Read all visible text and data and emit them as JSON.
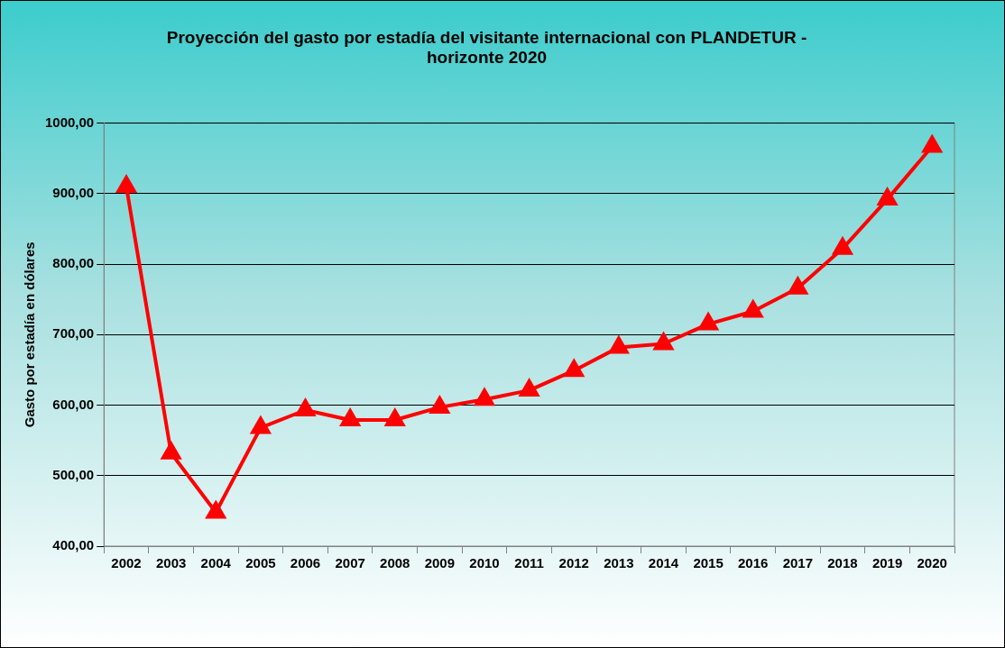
{
  "chart_data": {
    "type": "line",
    "title": "Proyección del gasto por estadía del visitante internacional con PLANDETUR - horizonte 2020",
    "ylabel": "Gasto por estadía en dólares",
    "categories": [
      "2002",
      "2003",
      "2004",
      "2005",
      "2006",
      "2007",
      "2008",
      "2009",
      "2010",
      "2011",
      "2012",
      "2013",
      "2014",
      "2015",
      "2016",
      "2017",
      "2018",
      "2019",
      "2020"
    ],
    "series": [
      {
        "color": "#ff0000",
        "values": [
          910,
          532,
          448,
          568,
          593,
          579,
          579,
          597,
          608,
          621,
          649,
          682,
          687,
          715,
          733,
          766,
          822,
          892,
          967
        ]
      }
    ],
    "ylim": [
      400,
      1000
    ],
    "yticks": [
      {
        "value": 400,
        "label": "400,00"
      },
      {
        "value": 500,
        "label": "500,00"
      },
      {
        "value": 600,
        "label": "600,00"
      },
      {
        "value": 700,
        "label": "700,00"
      },
      {
        "value": 800,
        "label": "800,00"
      },
      {
        "value": 900,
        "label": "900,00"
      },
      {
        "value": 1000,
        "label": "1000,00"
      }
    ],
    "grid": "y",
    "legend": false,
    "marker": "triangle",
    "line_style": "solid"
  }
}
